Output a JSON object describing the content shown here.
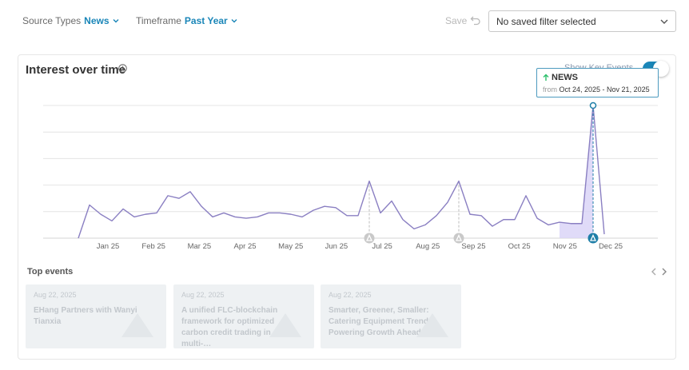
{
  "filters": {
    "source": {
      "label": "Source Types",
      "value": "News"
    },
    "timeframe": {
      "label": "Timeframe",
      "value": "Past Year"
    },
    "save_label": "Save",
    "saved_filter": "No saved filter selected"
  },
  "card": {
    "title": "Interest over time",
    "toggle_label": "Show Key Events",
    "top_events_label": "Top events"
  },
  "tooltip": {
    "category": "NEWS",
    "from_label": "from",
    "range": "Oct 24, 2025 - Nov 21, 2025"
  },
  "chart_data": {
    "type": "line",
    "x_tick_labels": [
      "Jan 25",
      "Feb 25",
      "Mar 25",
      "Apr 25",
      "May 25",
      "Jun 25",
      "Jul 25",
      "Aug 25",
      "Sep 25",
      "Oct 25",
      "Nov 25",
      "Dec 25"
    ],
    "values": [
      0,
      25,
      18,
      13,
      22,
      16,
      18,
      19,
      32,
      30,
      35,
      24,
      16,
      19,
      16,
      15,
      16,
      19,
      19,
      18,
      16,
      21,
      24,
      23,
      17,
      17,
      43,
      19,
      28,
      14,
      7,
      10,
      17,
      27,
      43,
      18,
      17,
      9,
      14,
      14,
      32,
      15,
      10,
      12,
      11,
      11,
      100,
      3
    ],
    "ylim": [
      0,
      100
    ],
    "grid": true,
    "highlighted_points": [
      43,
      44,
      45,
      46
    ],
    "peak_index": 46,
    "key_event_indices": [
      26,
      34
    ],
    "colors": {
      "line": "#8a7fc2",
      "highlight_fill": "#d8d2f6",
      "peak": "#1f7fa8",
      "grid": "#e4e4e4",
      "event_marker": "#c9c9c9"
    }
  },
  "events": [
    {
      "date": "Aug 22, 2025",
      "title": "EHang Partners with Wanyi Tianxia"
    },
    {
      "date": "Aug 22, 2025",
      "title": "A unified FLC-blockchain framework for optimized carbon credit trading in multi-…"
    },
    {
      "date": "Aug 22, 2025",
      "title": "Smarter, Greener, Smaller: Catering Equipment Trends Powering Growth Ahead of…"
    }
  ]
}
